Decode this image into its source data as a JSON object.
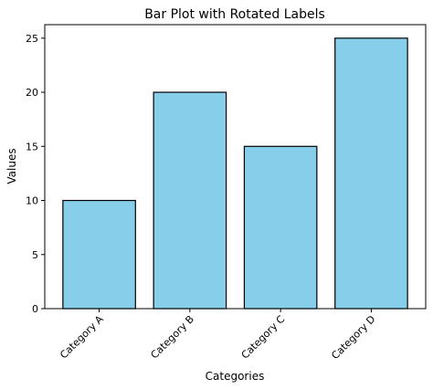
{
  "chart_data": {
    "type": "bar",
    "title": "Bar Plot with Rotated Labels",
    "xlabel": "Categories",
    "ylabel": "Values",
    "categories": [
      "Category A",
      "Category B",
      "Category C",
      "Category D"
    ],
    "values": [
      10,
      20,
      15,
      25
    ],
    "ylim": [
      0,
      26.25
    ],
    "yticks": [
      0,
      5,
      10,
      15,
      20,
      25
    ],
    "xtick_rotation_deg": 45,
    "grid": false,
    "legend": "none",
    "bar_color": "#87ceeb",
    "bar_edge_color": "#000000"
  }
}
